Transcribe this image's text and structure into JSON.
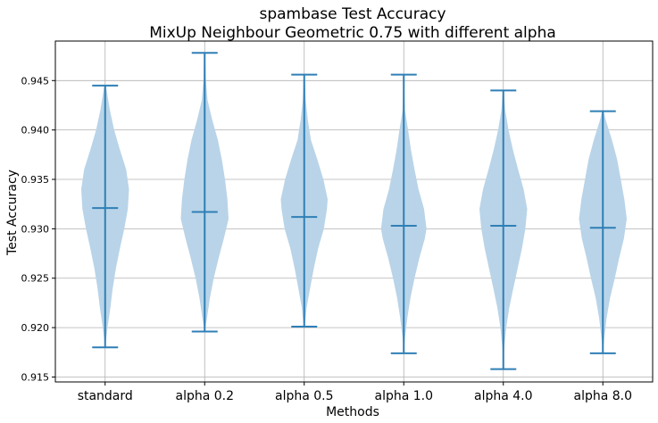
{
  "chart_data": {
    "type": "violin",
    "title": "spambase Test Accuracy",
    "subtitle": "MixUp Neighbour Geometric 0.75 with different alpha",
    "xlabel": "Methods",
    "ylabel": "Test Accuracy",
    "ylim": [
      0.9145,
      0.949
    ],
    "yticks": [
      0.915,
      0.92,
      0.925,
      0.93,
      0.935,
      0.94,
      0.945
    ],
    "ytick_labels": [
      "0.915",
      "0.920",
      "0.925",
      "0.930",
      "0.935",
      "0.940",
      "0.945"
    ],
    "categories": [
      "standard",
      "alpha 0.2",
      "alpha 0.5",
      "alpha 1.0",
      "alpha 4.0",
      "alpha 8.0"
    ],
    "grid": true,
    "colors": {
      "body": "#b9d4e8",
      "line": "#2f7fb6",
      "grid": "#b0b0b0"
    },
    "series": [
      {
        "min": 0.918,
        "max": 0.9445,
        "mean": 0.9321,
        "density": [
          [
            0.918,
            0.0
          ],
          [
            0.92,
            0.1
          ],
          [
            0.922,
            0.22
          ],
          [
            0.924,
            0.32
          ],
          [
            0.926,
            0.45
          ],
          [
            0.928,
            0.62
          ],
          [
            0.93,
            0.8
          ],
          [
            0.932,
            0.95
          ],
          [
            0.934,
            1.0
          ],
          [
            0.936,
            0.88
          ],
          [
            0.938,
            0.62
          ],
          [
            0.94,
            0.38
          ],
          [
            0.942,
            0.2
          ],
          [
            0.9445,
            0.03
          ]
        ]
      },
      {
        "min": 0.9196,
        "max": 0.9478,
        "mean": 0.9317,
        "density": [
          [
            0.9196,
            0.0
          ],
          [
            0.921,
            0.1
          ],
          [
            0.923,
            0.22
          ],
          [
            0.925,
            0.38
          ],
          [
            0.927,
            0.58
          ],
          [
            0.929,
            0.8
          ],
          [
            0.931,
            1.0
          ],
          [
            0.933,
            0.95
          ],
          [
            0.935,
            0.85
          ],
          [
            0.937,
            0.72
          ],
          [
            0.939,
            0.55
          ],
          [
            0.941,
            0.32
          ],
          [
            0.943,
            0.12
          ],
          [
            0.945,
            0.05
          ],
          [
            0.9478,
            0.02
          ]
        ]
      },
      {
        "min": 0.9201,
        "max": 0.9456,
        "mean": 0.9312,
        "density": [
          [
            0.9201,
            0.02
          ],
          [
            0.922,
            0.1
          ],
          [
            0.924,
            0.25
          ],
          [
            0.926,
            0.4
          ],
          [
            0.928,
            0.58
          ],
          [
            0.93,
            0.82
          ],
          [
            0.932,
            0.95
          ],
          [
            0.933,
            0.98
          ],
          [
            0.935,
            0.8
          ],
          [
            0.937,
            0.55
          ],
          [
            0.939,
            0.28
          ],
          [
            0.941,
            0.15
          ],
          [
            0.943,
            0.06
          ],
          [
            0.9456,
            0.02
          ]
        ]
      },
      {
        "min": 0.9174,
        "max": 0.9456,
        "mean": 0.9303,
        "density": [
          [
            0.9174,
            0.0
          ],
          [
            0.919,
            0.05
          ],
          [
            0.921,
            0.15
          ],
          [
            0.923,
            0.28
          ],
          [
            0.925,
            0.45
          ],
          [
            0.927,
            0.65
          ],
          [
            0.929,
            0.88
          ],
          [
            0.93,
            0.95
          ],
          [
            0.932,
            0.85
          ],
          [
            0.934,
            0.62
          ],
          [
            0.936,
            0.45
          ],
          [
            0.938,
            0.3
          ],
          [
            0.94,
            0.18
          ],
          [
            0.942,
            0.05
          ],
          [
            0.9456,
            0.01
          ]
        ]
      },
      {
        "min": 0.9158,
        "max": 0.944,
        "mean": 0.9303,
        "density": [
          [
            0.9158,
            0.0
          ],
          [
            0.918,
            0.04
          ],
          [
            0.92,
            0.12
          ],
          [
            0.922,
            0.25
          ],
          [
            0.924,
            0.42
          ],
          [
            0.926,
            0.6
          ],
          [
            0.928,
            0.78
          ],
          [
            0.93,
            0.92
          ],
          [
            0.932,
            1.0
          ],
          [
            0.934,
            0.85
          ],
          [
            0.936,
            0.62
          ],
          [
            0.938,
            0.4
          ],
          [
            0.94,
            0.22
          ],
          [
            0.942,
            0.08
          ],
          [
            0.944,
            0.02
          ]
        ]
      },
      {
        "min": 0.9174,
        "max": 0.9419,
        "mean": 0.9301,
        "density": [
          [
            0.9174,
            0.0
          ],
          [
            0.919,
            0.06
          ],
          [
            0.921,
            0.16
          ],
          [
            0.923,
            0.3
          ],
          [
            0.925,
            0.5
          ],
          [
            0.927,
            0.68
          ],
          [
            0.929,
            0.88
          ],
          [
            0.931,
            1.0
          ],
          [
            0.933,
            0.9
          ],
          [
            0.935,
            0.75
          ],
          [
            0.937,
            0.6
          ],
          [
            0.939,
            0.38
          ],
          [
            0.941,
            0.12
          ],
          [
            0.9419,
            0.03
          ]
        ]
      }
    ]
  }
}
